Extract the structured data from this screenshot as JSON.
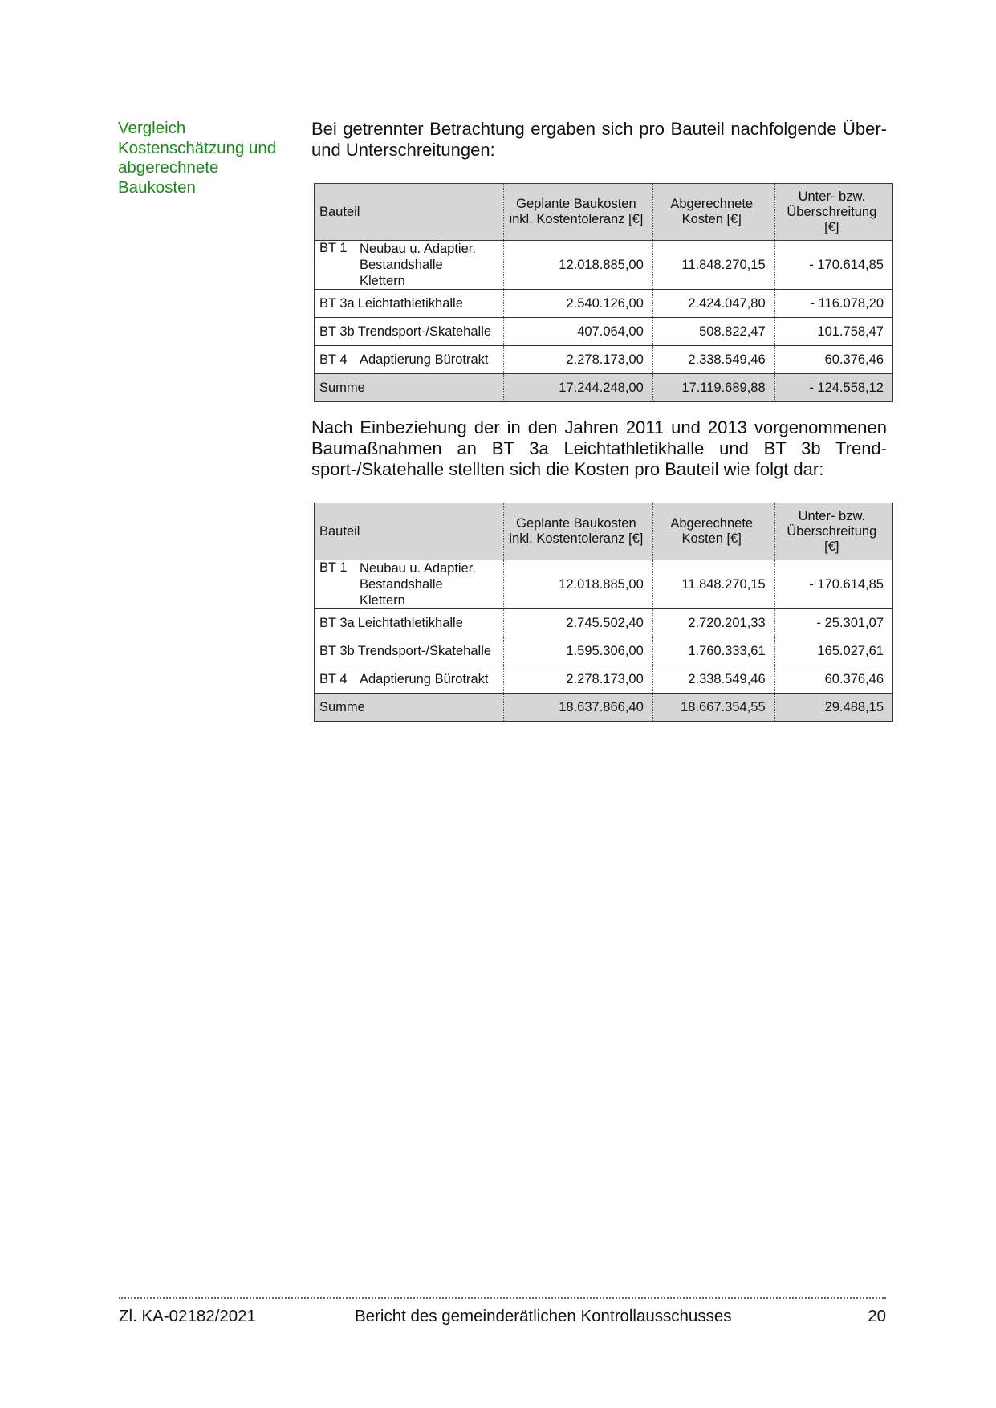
{
  "sidebar": {
    "heading": "Vergleich Kostenschätzung und abgerechnete Baukosten",
    "color": "#1a8a1a"
  },
  "paragraph1": "Bei getrennter Betrachtung ergaben sich pro Bauteil nachfolgende Über- und Unterschreitungen:",
  "paragraph2": "Nach Einbeziehung der in den Jahren 2011 und 2013 vorgenommenen Baumaßnahmen an BT 3a Leichtathletikhalle und BT 3b Trend-sport-/Skatehalle stellten sich die Kosten pro Bauteil wie folgt dar:",
  "headers": {
    "bauteil": "Bauteil",
    "geplant": "Geplante Baukosten inkl. Kostentoleranz [€]",
    "abgerechnet": "Abgerechnete Kosten [€]",
    "diff": "Unter- bzw. Überschreitung [€]"
  },
  "table1": {
    "rows": [
      {
        "code": "BT 1",
        "name": "Neubau u. Adaptier. Bestandshalle Klettern",
        "geplant": "12.018.885,00",
        "abgerechnet": "11.848.270,15",
        "diff": "- 170.614,85"
      },
      {
        "code": "BT 3a",
        "name": "Leichtathletikhalle",
        "geplant": "2.540.126,00",
        "abgerechnet": "2.424.047,80",
        "diff": "- 116.078,20"
      },
      {
        "code": "BT 3b",
        "name": "Trendsport-/Skatehalle",
        "geplant": "407.064,00",
        "abgerechnet": "508.822,47",
        "diff": "101.758,47"
      },
      {
        "code": "BT 4",
        "name": "Adaptierung Bürotrakt",
        "geplant": "2.278.173,00",
        "abgerechnet": "2.338.549,46",
        "diff": "60.376,46"
      }
    ],
    "sum": {
      "label": "Summe",
      "geplant": "17.244.248,00",
      "abgerechnet": "17.119.689,88",
      "diff": "- 124.558,12"
    }
  },
  "table2": {
    "rows": [
      {
        "code": "BT 1",
        "name": "Neubau u. Adaptier. Bestandshalle Klettern",
        "geplant": "12.018.885,00",
        "abgerechnet": "11.848.270,15",
        "diff": "- 170.614,85"
      },
      {
        "code": "BT 3a",
        "name": "Leichtathletikhalle",
        "geplant": "2.745.502,40",
        "abgerechnet": "2.720.201,33",
        "diff": "- 25.301,07"
      },
      {
        "code": "BT 3b",
        "name": "Trendsport-/Skatehalle",
        "geplant": "1.595.306,00",
        "abgerechnet": "1.760.333,61",
        "diff": "165.027,61"
      },
      {
        "code": "BT 4",
        "name": "Adaptierung Bürotrakt",
        "geplant": "2.278.173,00",
        "abgerechnet": "2.338.549,46",
        "diff": "60.376,46"
      }
    ],
    "sum": {
      "label": "Summe",
      "geplant": "18.637.866,40",
      "abgerechnet": "18.667.354,55",
      "diff": "29.488,15"
    }
  },
  "footer": {
    "ref": "Zl. KA-02182/2021",
    "title": "Bericht des gemeinderätlichen Kontrollausschusses",
    "page": "20"
  }
}
